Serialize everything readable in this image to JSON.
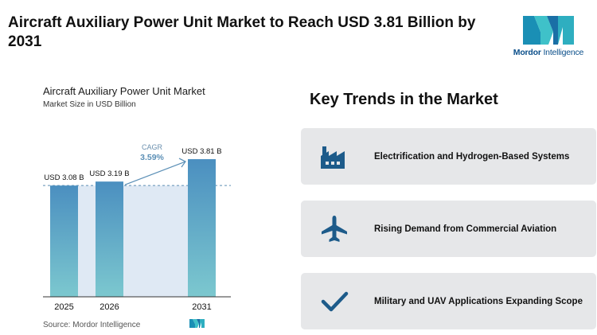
{
  "headline": "Aircraft Auxiliary Power Unit Market to Reach USD 3.81 Billion by 2031",
  "logo": {
    "brand": "Mordor",
    "brand2": " Intelligence"
  },
  "chart_data": {
    "type": "bar",
    "title": "Aircraft Auxiliary Power Unit Market",
    "subtitle": "Market Size in USD Billion",
    "categories": [
      "2025",
      "2026",
      "2031"
    ],
    "values": [
      3.08,
      3.19,
      3.81
    ],
    "data_labels": [
      "USD 3.08 B",
      "USD 3.19 B",
      "USD 3.81 B"
    ],
    "cagr_label": "CAGR",
    "cagr_value": "3.59%",
    "colors": {
      "bar_top": "#4b8fc0",
      "bar_bottom": "#7cc8cf",
      "band": "#dfe9f4",
      "cagr": "#5b8fb6"
    },
    "source": "Source: Mordor Intelligence"
  },
  "trends": {
    "title": "Key Trends in the Market",
    "items": [
      {
        "icon": "factory-icon",
        "label": "Electrification and Hydrogen-Based Systems"
      },
      {
        "icon": "airplane-icon",
        "label": "Rising Demand from Commercial Aviation"
      },
      {
        "icon": "checkmark-icon",
        "label": "Military and UAV Applications Expanding Scope"
      }
    ]
  },
  "colors": {
    "icon": "#1d5b8a",
    "card": "#e6e7e9"
  }
}
